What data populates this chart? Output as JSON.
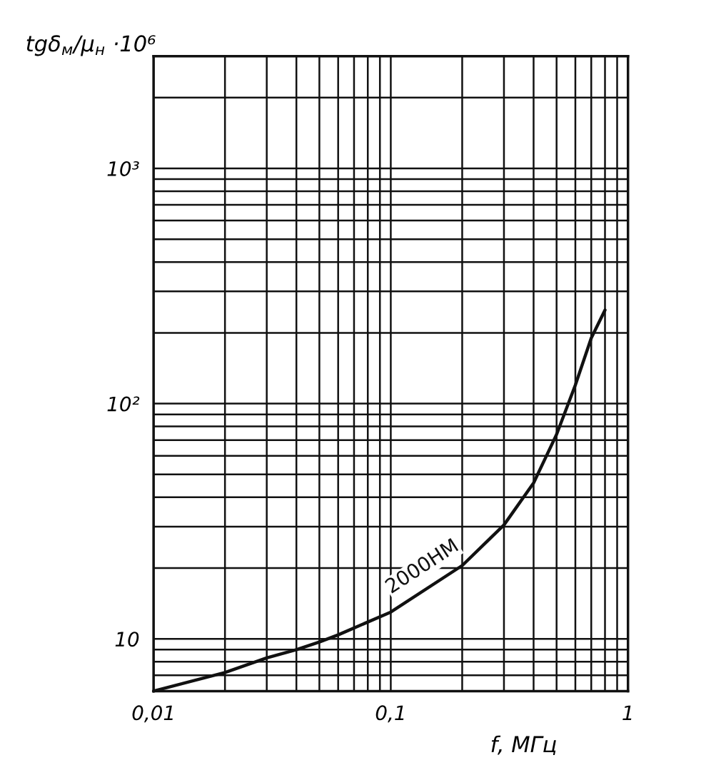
{
  "chart_data": {
    "type": "line",
    "ylabel": "tgδ$_{м}$/μ$_{н}$ ·10⁶",
    "xlabel": "f, МГц",
    "log": "xy",
    "grid": true,
    "line_style": "solid",
    "marker": "none",
    "x": [
      0.01,
      0.02,
      0.03,
      0.04,
      0.05,
      0.06,
      0.1,
      0.2,
      0.3,
      0.4,
      0.5,
      0.6,
      0.7,
      0.8
    ],
    "series": [
      {
        "name": "2000НМ",
        "color": "#111111",
        "values": [
          6,
          7.2,
          8.3,
          9,
          9.7,
          10.4,
          13,
          20.5,
          30.5,
          46,
          74,
          120,
          190,
          250
        ]
      }
    ],
    "xlim": [
      0.01,
      1
    ],
    "xticks": [
      {
        "value": 0.01,
        "label": "0,01"
      },
      {
        "value": 0.02,
        "label": null
      },
      {
        "value": 0.03,
        "label": null
      },
      {
        "value": 0.04,
        "label": null
      },
      {
        "value": 0.05,
        "label": null
      },
      {
        "value": 0.06,
        "label": null
      },
      {
        "value": 0.07,
        "label": null
      },
      {
        "value": 0.08,
        "label": null
      },
      {
        "value": 0.09,
        "label": null
      },
      {
        "value": 0.1,
        "label": "0,1"
      },
      {
        "value": 0.2,
        "label": null
      },
      {
        "value": 0.3,
        "label": null
      },
      {
        "value": 0.4,
        "label": null
      },
      {
        "value": 0.5,
        "label": null
      },
      {
        "value": 0.6,
        "label": null
      },
      {
        "value": 0.7,
        "label": null
      },
      {
        "value": 0.8,
        "label": null
      },
      {
        "value": 0.9,
        "label": null
      },
      {
        "value": 1,
        "label": "1"
      }
    ],
    "ylim": [
      6,
      3000
    ],
    "yticks": [
      {
        "value": 7,
        "label": null
      },
      {
        "value": 8,
        "label": null
      },
      {
        "value": 9,
        "label": null
      },
      10,
      {
        "value": 20,
        "label": null
      },
      {
        "value": 30,
        "label": null
      },
      {
        "value": 40,
        "label": null
      },
      {
        "value": 50,
        "label": null
      },
      {
        "value": 60,
        "label": null
      },
      {
        "value": 70,
        "label": null
      },
      {
        "value": 80,
        "label": null
      },
      {
        "value": 90,
        "label": null
      },
      {
        "value": 100,
        "label": "10²"
      },
      {
        "value": 200,
        "label": null
      },
      {
        "value": 300,
        "label": null
      },
      {
        "value": 400,
        "label": null
      },
      {
        "value": 500,
        "label": null
      },
      {
        "value": 600,
        "label": null
      },
      {
        "value": 700,
        "label": null
      },
      {
        "value": 800,
        "label": null
      },
      {
        "value": 900,
        "label": null
      },
      {
        "value": 1000,
        "label": "10³"
      },
      {
        "value": 2000,
        "label": null
      }
    ]
  }
}
